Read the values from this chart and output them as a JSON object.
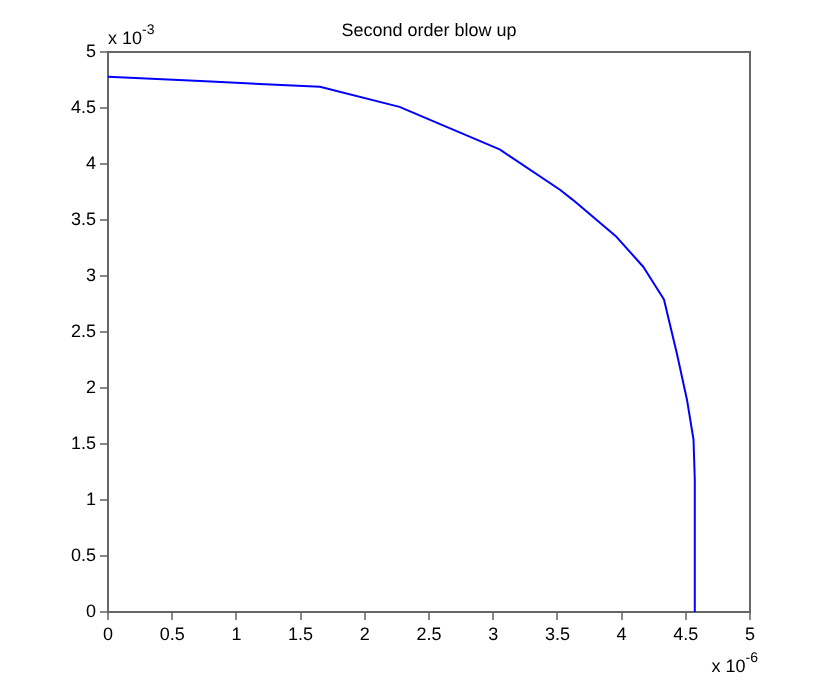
{
  "chart_data": {
    "type": "line",
    "title": "Second order blow up",
    "annotations": [
      "x 10$^{-3}$",
      "x 10$^{-6}$"
    ],
    "x": [
      0,
      0.72,
      1.65,
      2.27,
      3.05,
      3.52,
      3.62,
      3.96,
      4.17,
      4.33,
      4.43,
      4.51,
      4.56,
      4.57,
      4.57
    ],
    "series": [
      {
        "color": "#0000ff",
        "values": [
          4.78,
          4.74,
          4.69,
          4.51,
          4.13,
          3.77,
          3.68,
          3.35,
          3.08,
          2.79,
          2.31,
          1.89,
          1.54,
          1.18,
          0
        ]
      }
    ],
    "xlim": [
      0,
      5
    ],
    "xticks": [
      0,
      0.5,
      1,
      1.5,
      2,
      2.5,
      3,
      3.5,
      4,
      4.5,
      5
    ],
    "ylim": [
      0,
      5
    ],
    "yticks": [
      0,
      0.5,
      1,
      1.5,
      2,
      2.5,
      3,
      3.5,
      4,
      4.5,
      5
    ],
    "grid": false,
    "legend": false,
    "marker": "none",
    "line_style": "solid"
  }
}
